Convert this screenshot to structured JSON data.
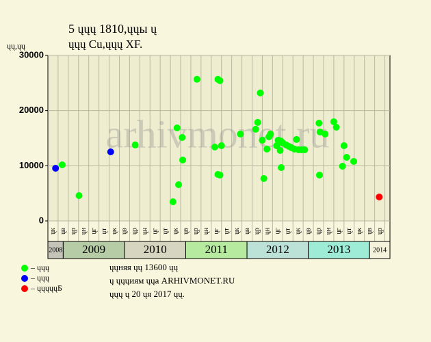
{
  "chart_data": {
    "type": "scatter",
    "title": "5 ųųų 1810,ųųы ų",
    "subtitle": "ųųų Cu,ųųų XF.",
    "y_label": "ųų,ųų",
    "watermark": "arhivmonet.ru",
    "xlim": [
      0,
      67
    ],
    "ylim": [
      0,
      30000
    ],
    "yticks": [
      0,
      10000,
      20000,
      30000
    ],
    "xticks": [
      {
        "value": 2,
        "label": "ųк"
      },
      {
        "value": 4,
        "label": "ųв"
      },
      {
        "value": 6,
        "label": "ųр"
      },
      {
        "value": 8,
        "label": "ųн"
      },
      {
        "value": 10,
        "label": "ųг"
      },
      {
        "value": 12,
        "label": "ųт"
      },
      {
        "value": 14,
        "label": "ųк"
      },
      {
        "value": 16,
        "label": "ųв"
      },
      {
        "value": 18,
        "label": "ųр"
      },
      {
        "value": 20,
        "label": "ųн"
      },
      {
        "value": 22,
        "label": "ųг"
      },
      {
        "value": 24,
        "label": "ųт"
      },
      {
        "value": 26,
        "label": "ųк"
      },
      {
        "value": 28,
        "label": "ųв"
      },
      {
        "value": 30,
        "label": "ųр"
      },
      {
        "value": 32,
        "label": "ųн"
      },
      {
        "value": 34,
        "label": "ųг"
      },
      {
        "value": 36,
        "label": "ųт"
      },
      {
        "value": 38,
        "label": "ųк"
      },
      {
        "value": 40,
        "label": "ųв"
      },
      {
        "value": 42,
        "label": "ųр"
      },
      {
        "value": 44,
        "label": "ųн"
      },
      {
        "value": 46,
        "label": "ųг"
      },
      {
        "value": 48,
        "label": "ųт"
      },
      {
        "value": 50,
        "label": "ųк"
      },
      {
        "value": 52,
        "label": "ųв"
      },
      {
        "value": 54,
        "label": "ųр"
      },
      {
        "value": 56,
        "label": "ųн"
      },
      {
        "value": 58,
        "label": "ųг"
      },
      {
        "value": 60,
        "label": "ųт"
      },
      {
        "value": 62,
        "label": "ųк"
      },
      {
        "value": 64,
        "label": "ųв"
      },
      {
        "value": 66,
        "label": "ųр"
      }
    ],
    "year_bands": [
      {
        "label": "2008",
        "from": 0,
        "to": 3,
        "color": "#c4c4b8"
      },
      {
        "label": "2009",
        "from": 3,
        "to": 15,
        "color": "#b6cca6"
      },
      {
        "label": "2010",
        "from": 15,
        "to": 27,
        "color": "#d6d6c0"
      },
      {
        "label": "2011",
        "from": 27,
        "to": 39,
        "color": "#b6ea9e"
      },
      {
        "label": "2012",
        "from": 39,
        "to": 51,
        "color": "#bce2d8"
      },
      {
        "label": "2013",
        "from": 51,
        "to": 63,
        "color": "#9eecd6"
      },
      {
        "label": "2014",
        "from": 63,
        "to": 67,
        "color": "#f4f2da"
      }
    ],
    "grid": true,
    "series": [
      {
        "name": "– ųųų",
        "color": "#00ff00",
        "x": [
          2.8,
          6.1,
          17.1,
          24.5,
          25.3,
          25.6,
          26.3,
          26.4,
          29.2,
          32.7,
          33.3,
          33.3,
          33.7,
          33.7,
          34,
          37.7,
          40.7,
          41.1,
          41.6,
          42,
          42.3,
          42.9,
          43.3,
          43.6,
          44.8,
          45.1,
          45.5,
          45.6,
          45.7,
          46,
          46.7,
          47.2,
          47.7,
          48.3,
          48.7,
          49.1,
          49.7,
          50.3,
          53.1,
          53.2,
          53.3,
          54.3,
          56,
          56.5,
          57.7,
          58,
          58.5,
          59.9
        ],
        "values": [
          10170,
          4590,
          13770,
          3470,
          16860,
          6570,
          15130,
          11040,
          25670,
          13390,
          25670,
          8430,
          25420,
          8310,
          13640,
          15750,
          16620,
          17860,
          23200,
          14630,
          7690,
          13020,
          15250,
          15750,
          13640,
          14630,
          12770,
          14510,
          9670,
          14140,
          13760,
          13510,
          13270,
          13020,
          14760,
          12900,
          12900,
          12900,
          17730,
          8310,
          16120,
          15750,
          17980,
          16990,
          9920,
          13640,
          11530,
          10790
        ]
      },
      {
        "name": "– ųųų",
        "color": "#0000ff",
        "x": [
          1.5,
          12.3
        ],
        "values": [
          9550,
          12520
        ]
      },
      {
        "name": "– ųųųųųБ",
        "color": "#ff0000",
        "x": [
          64.9
        ],
        "values": [
          4340
        ]
      }
    ],
    "annotations": [
      "ųųняя ųų 13600 ųų",
      "ų ųųųиям ųųа ARHIVMONET.RU",
      "ųųų ų 20 ųя 2017 ųų."
    ]
  }
}
